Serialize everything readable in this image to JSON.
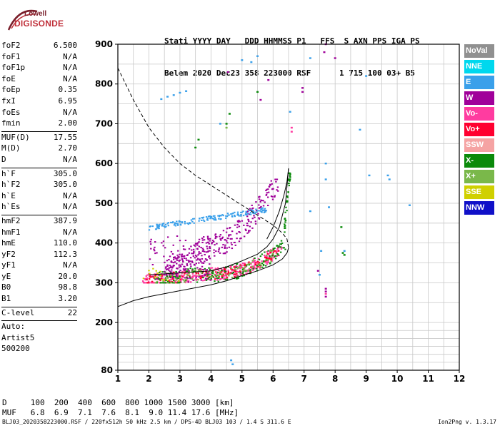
{
  "logo": {
    "line1": "Lowell",
    "line2": "DIGISONDE"
  },
  "header": {
    "line1": "Stati YYYY DAY   DDD HHMMSS P1   FFS  S AXN PPS IGA PS",
    "line2": "Belem 2020 Dec23 358 223000 RSF      1 715 100 03+ B5"
  },
  "params": [
    {
      "k": "foF2",
      "v": "6.500"
    },
    {
      "k": "foF1",
      "v": "N/A"
    },
    {
      "k": "foF1p",
      "v": "N/A"
    },
    {
      "k": "foE",
      "v": "N/A"
    },
    {
      "k": "foEp",
      "v": "0.35"
    },
    {
      "k": "fxI",
      "v": "6.95"
    },
    {
      "k": "foEs",
      "v": "N/A"
    },
    {
      "k": "fmin",
      "v": "2.00"
    },
    {
      "sep": true
    },
    {
      "k": "MUF(D)",
      "v": "17.55"
    },
    {
      "k": "M(D)",
      "v": "2.70"
    },
    {
      "k": "D",
      "v": "N/A"
    },
    {
      "sep": true
    },
    {
      "k": "h`F",
      "v": "305.0"
    },
    {
      "k": "h`F2",
      "v": "305.0"
    },
    {
      "k": "h`E",
      "v": "N/A"
    },
    {
      "k": "h`Es",
      "v": "N/A"
    },
    {
      "sep": true
    },
    {
      "k": "hmF2",
      "v": "387.9"
    },
    {
      "k": "hmF1",
      "v": "N/A"
    },
    {
      "k": "hmE",
      "v": "110.0"
    },
    {
      "k": "yF2",
      "v": "112.3"
    },
    {
      "k": "yF1",
      "v": "N/A"
    },
    {
      "k": "yE",
      "v": "20.0"
    },
    {
      "k": "B0",
      "v": "98.8"
    },
    {
      "k": "B1",
      "v": "3.20"
    },
    {
      "sep": true
    },
    {
      "k": "C-level",
      "v": "22"
    },
    {
      "sep": true
    },
    {
      "k": "Auto:",
      "v": ""
    },
    {
      "k": "Artist5",
      "v": ""
    },
    {
      "k": "500200",
      "v": ""
    }
  ],
  "footer": {
    "d_line": "D     100  200  400  600  800 1000 1500 3000 [km]",
    "muf_line": "MUF   6.8  6.9  7.1  7.6  8.1  9.0 11.4 17.6 [MHz]",
    "bottom_left": "BLJ03_2020358223000.RSF / 220fx512h 50 kHz 2.5 km / DPS-4D BLJ03 103 / 1.4 S 311.6 E",
    "bottom_right": "Ion2Png v. 1.3.17"
  },
  "legend": [
    {
      "label": "NoVal",
      "color": "#909090"
    },
    {
      "label": "NNE",
      "color": "#00d8ee"
    },
    {
      "label": "E",
      "color": "#3aa0ea"
    },
    {
      "label": "W",
      "color": "#a0009a"
    },
    {
      "label": "Vo-",
      "color": "#ff3ca0"
    },
    {
      "label": "Vo+",
      "color": "#ff0030"
    },
    {
      "label": "SSW",
      "color": "#f5a3a3"
    },
    {
      "label": "X-",
      "color": "#0a8a0a"
    },
    {
      "label": "X+",
      "color": "#7ab84a"
    },
    {
      "label": "SSE",
      "color": "#d0d000"
    },
    {
      "label": "NNW",
      "color": "#1010c8"
    }
  ],
  "chart_data": {
    "type": "scatter",
    "xlim": [
      1,
      12
    ],
    "ylim": [
      80,
      900
    ],
    "x_ticks": [
      1,
      2,
      3,
      4,
      5,
      6,
      7,
      8,
      9,
      10,
      11,
      12
    ],
    "y_ticks": [
      80,
      200,
      300,
      400,
      500,
      600,
      700,
      800,
      900
    ],
    "grid": true,
    "x_gridlines": [
      1.5,
      2,
      2.5,
      3,
      3.5,
      4,
      4.5,
      5,
      5.5,
      6,
      6.5,
      7,
      7.5,
      8,
      8.5,
      9,
      9.5,
      10,
      10.5,
      11,
      11.5,
      12
    ],
    "y_gridlines": [
      100,
      120,
      140,
      160,
      180,
      200,
      250,
      300,
      350,
      400,
      450,
      500,
      550,
      600,
      650,
      700,
      750,
      800,
      850,
      900
    ],
    "series": [
      {
        "style": "solid",
        "points": [
          [
            1,
            240
          ],
          [
            1.5,
            255
          ],
          [
            2,
            265
          ],
          [
            3,
            280
          ],
          [
            4,
            295
          ],
          [
            4.5,
            305
          ],
          [
            5,
            318
          ],
          [
            5.5,
            330
          ],
          [
            6,
            345
          ],
          [
            6.3,
            360
          ],
          [
            6.45,
            375
          ],
          [
            6.5,
            388
          ]
        ]
      },
      {
        "style": "dashed",
        "points": [
          [
            1,
            840
          ],
          [
            1.5,
            760
          ],
          [
            2,
            690
          ],
          [
            2.5,
            640
          ],
          [
            3,
            600
          ],
          [
            3.5,
            570
          ],
          [
            4,
            545
          ],
          [
            4.5,
            520
          ],
          [
            5,
            495
          ],
          [
            5.5,
            470
          ],
          [
            6,
            445
          ],
          [
            6.3,
            425
          ],
          [
            6.45,
            410
          ],
          [
            6.5,
            388
          ]
        ]
      },
      {
        "style": "solid",
        "points": [
          [
            5.8,
            410
          ],
          [
            6,
            440
          ],
          [
            6.2,
            480
          ],
          [
            6.35,
            520
          ],
          [
            6.45,
            555
          ],
          [
            6.5,
            588
          ]
        ]
      },
      {
        "style": "solid",
        "points": [
          [
            2,
            320
          ],
          [
            3,
            325
          ],
          [
            4,
            330
          ],
          [
            4.5,
            340
          ],
          [
            5,
            355
          ],
          [
            5.5,
            372
          ],
          [
            5.8,
            390
          ],
          [
            6,
            410
          ],
          [
            6.2,
            440
          ],
          [
            6.4,
            500
          ],
          [
            6.5,
            588
          ]
        ]
      }
    ],
    "point_groups": [
      {
        "color": "#ff3ca0",
        "xr": [
          1.8,
          6.3
        ],
        "yr": [
          300,
          390
        ],
        "n": 380,
        "curve": "F2"
      },
      {
        "color": "#ff0030",
        "xr": [
          1.9,
          6.2
        ],
        "yr": [
          300,
          380
        ],
        "n": 140,
        "curve": "F2"
      },
      {
        "color": "#0a8a0a",
        "xr": [
          2.2,
          6.4
        ],
        "yr": [
          300,
          410
        ],
        "n": 170,
        "curve": "F2"
      },
      {
        "color": "#7ab84a",
        "xr": [
          2.2,
          6.0
        ],
        "yr": [
          300,
          390
        ],
        "n": 90,
        "curve": "F2"
      },
      {
        "color": "#a0009a",
        "xr": [
          2.5,
          6.2
        ],
        "yr": [
          320,
          560
        ],
        "n": 280,
        "curve": "W"
      },
      {
        "color": "#3aa0ea",
        "xr": [
          2.0,
          5.8
        ],
        "yr": [
          430,
          510
        ],
        "n": 160,
        "curve": "E"
      },
      {
        "color": "#a0009a",
        "xr": [
          2.0,
          4.0
        ],
        "yr": [
          300,
          420
        ],
        "n": 110,
        "curve": "none"
      },
      {
        "color": "#d0d000",
        "xr": [
          1.8,
          3.0
        ],
        "yr": [
          300,
          340
        ],
        "n": 14,
        "curve": "none"
      },
      {
        "color": "#0a8a0a",
        "xr": [
          6.3,
          6.6
        ],
        "yr": [
          420,
          580
        ],
        "n": 40,
        "curve": "vert"
      }
    ],
    "scatter_points": [
      {
        "x": 2.4,
        "y": 762,
        "c": "#3aa0ea"
      },
      {
        "x": 2.6,
        "y": 768,
        "c": "#3aa0ea"
      },
      {
        "x": 2.8,
        "y": 772,
        "c": "#3aa0ea"
      },
      {
        "x": 3.0,
        "y": 778,
        "c": "#3aa0ea"
      },
      {
        "x": 3.2,
        "y": 782,
        "c": "#3aa0ea"
      },
      {
        "x": 4.55,
        "y": 830,
        "c": "#a0009a"
      },
      {
        "x": 5.3,
        "y": 855,
        "c": "#3aa0ea"
      },
      {
        "x": 5.5,
        "y": 870,
        "c": "#3aa0ea"
      },
      {
        "x": 5.85,
        "y": 810,
        "c": "#a0009a"
      },
      {
        "x": 6.95,
        "y": 790,
        "c": "#a0009a"
      },
      {
        "x": 6.95,
        "y": 780,
        "c": "#a0009a"
      },
      {
        "x": 7.7,
        "y": 900,
        "c": "#a0009a"
      },
      {
        "x": 4.5,
        "y": 700,
        "c": "#0a8a0a"
      },
      {
        "x": 4.5,
        "y": 690,
        "c": "#7ab84a"
      },
      {
        "x": 4.6,
        "y": 725,
        "c": "#0a8a0a"
      },
      {
        "x": 4.3,
        "y": 700,
        "c": "#3aa0ea"
      },
      {
        "x": 5.5,
        "y": 780,
        "c": "#0a8a0a"
      },
      {
        "x": 5.6,
        "y": 760,
        "c": "#a0009a"
      },
      {
        "x": 6.6,
        "y": 690,
        "c": "#ff3ca0"
      },
      {
        "x": 6.6,
        "y": 680,
        "c": "#ff3ca0"
      },
      {
        "x": 6.55,
        "y": 730,
        "c": "#3aa0ea"
      },
      {
        "x": 3.5,
        "y": 640,
        "c": "#0a8a0a"
      },
      {
        "x": 3.6,
        "y": 660,
        "c": "#0a8a0a"
      },
      {
        "x": 8.8,
        "y": 685,
        "c": "#3aa0ea"
      },
      {
        "x": 9.0,
        "y": 820,
        "c": "#3aa0ea"
      },
      {
        "x": 9.1,
        "y": 570,
        "c": "#3aa0ea"
      },
      {
        "x": 9.7,
        "y": 570,
        "c": "#3aa0ea"
      },
      {
        "x": 9.75,
        "y": 560,
        "c": "#3aa0ea"
      },
      {
        "x": 7.7,
        "y": 600,
        "c": "#3aa0ea"
      },
      {
        "x": 7.7,
        "y": 560,
        "c": "#3aa0ea"
      },
      {
        "x": 10.4,
        "y": 495,
        "c": "#3aa0ea"
      },
      {
        "x": 7.2,
        "y": 480,
        "c": "#3aa0ea"
      },
      {
        "x": 7.8,
        "y": 490,
        "c": "#3aa0ea"
      },
      {
        "x": 8.2,
        "y": 440,
        "c": "#0a8a0a"
      },
      {
        "x": 8.25,
        "y": 375,
        "c": "#0a8a0a"
      },
      {
        "x": 8.3,
        "y": 370,
        "c": "#0a8a0a"
      },
      {
        "x": 7.55,
        "y": 380,
        "c": "#3aa0ea"
      },
      {
        "x": 8.3,
        "y": 380,
        "c": "#3aa0ea"
      },
      {
        "x": 7.7,
        "y": 285,
        "c": "#a0009a"
      },
      {
        "x": 7.7,
        "y": 278,
        "c": "#a0009a"
      },
      {
        "x": 7.7,
        "y": 265,
        "c": "#a0009a"
      },
      {
        "x": 7.7,
        "y": 272,
        "c": "#ff3ca0"
      },
      {
        "x": 7.45,
        "y": 330,
        "c": "#a0009a"
      },
      {
        "x": 7.5,
        "y": 320,
        "c": "#3aa0ea"
      },
      {
        "x": 4.65,
        "y": 105,
        "c": "#3aa0ea"
      },
      {
        "x": 4.7,
        "y": 95,
        "c": "#3aa0ea"
      },
      {
        "x": 7.2,
        "y": 865,
        "c": "#3aa0ea"
      },
      {
        "x": 5.0,
        "y": 860,
        "c": "#3aa0ea"
      },
      {
        "x": 7.65,
        "y": 880,
        "c": "#a0009a"
      },
      {
        "x": 8.0,
        "y": 865,
        "c": "#a0009a"
      }
    ]
  }
}
